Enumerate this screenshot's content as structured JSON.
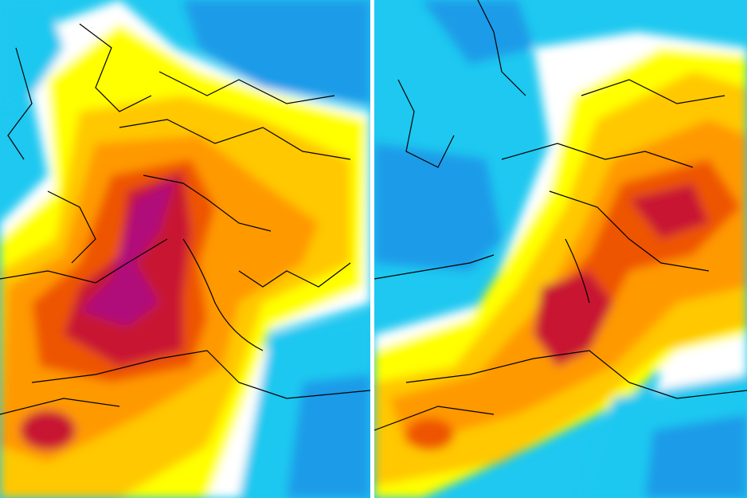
{
  "maps": [
    {
      "id": "left",
      "description_colors": [
        "#1ec8f0",
        "#ffff00",
        "#ffd000",
        "#ff9900",
        "#ee4400",
        "#c81830",
        "#b0107a"
      ]
    },
    {
      "id": "right",
      "description_colors": [
        "#1ec8f0",
        "#1a9be8",
        "#ffff00",
        "#ffd000",
        "#ff9900",
        "#ee4400",
        "#c81830"
      ]
    }
  ],
  "palette": {
    "cold_dark": "#1a8fe6",
    "cold": "#1ec8f0",
    "neutral": "#ffffff",
    "warm_light": "#ffff00",
    "warm": "#ffc800",
    "hot": "#ff9900",
    "hotter": "#ee5500",
    "very_hot": "#c81830",
    "extreme": "#b0107a",
    "borders": "#000000"
  }
}
